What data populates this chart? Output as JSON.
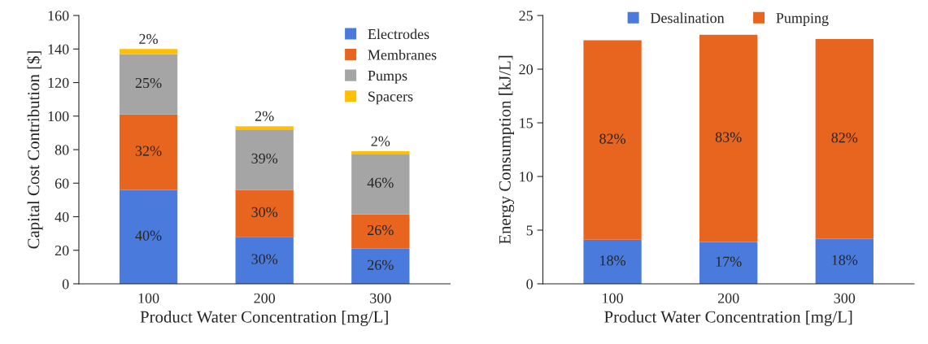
{
  "chart_data": [
    {
      "type": "bar",
      "stacked": true,
      "categories": [
        "100",
        "200",
        "300"
      ],
      "xlabel": "Product Water Concentration [mg/L]",
      "ylabel": "Capital Cost Contribution [$]",
      "ylim": [
        0,
        160
      ],
      "yticks": [
        0,
        20,
        40,
        60,
        80,
        100,
        120,
        140,
        160
      ],
      "legend": "top right",
      "grid": false,
      "series": [
        {
          "name": "Electrodes",
          "color": "#4a7bdc",
          "values": [
            56,
            28,
            21
          ]
        },
        {
          "name": "Membranes",
          "color": "#e8651f",
          "values": [
            45,
            28,
            20.5
          ]
        },
        {
          "name": "Pumps",
          "color": "#a5a5a5",
          "values": [
            36,
            36,
            36
          ]
        },
        {
          "name": "Spacers",
          "color": "#ffc000",
          "values": [
            3,
            2,
            1.5
          ]
        }
      ],
      "annotations": [
        "40%",
        "30%",
        "26%",
        "32%",
        "30%",
        "26%",
        "25%",
        "39%",
        "46%",
        "2%",
        "2%",
        "2%"
      ]
    },
    {
      "type": "bar",
      "stacked": true,
      "categories": [
        "100",
        "200",
        "300"
      ],
      "xlabel": "Product Water Concentration [mg/L]",
      "ylabel": "Energy Consumption [kJ/L]",
      "ylim": [
        0,
        25
      ],
      "yticks": [
        0,
        5,
        10,
        15,
        20,
        25
      ],
      "legend": "top",
      "grid": false,
      "series": [
        {
          "name": "Desalination",
          "color": "#4a7bdc",
          "values": [
            4.1,
            3.9,
            4.2
          ]
        },
        {
          "name": "Pumping",
          "color": "#e8651f",
          "values": [
            18.6,
            19.3,
            18.6
          ]
        }
      ],
      "annotations": [
        "18%",
        "17%",
        "18%",
        "82%",
        "83%",
        "82%"
      ]
    }
  ]
}
